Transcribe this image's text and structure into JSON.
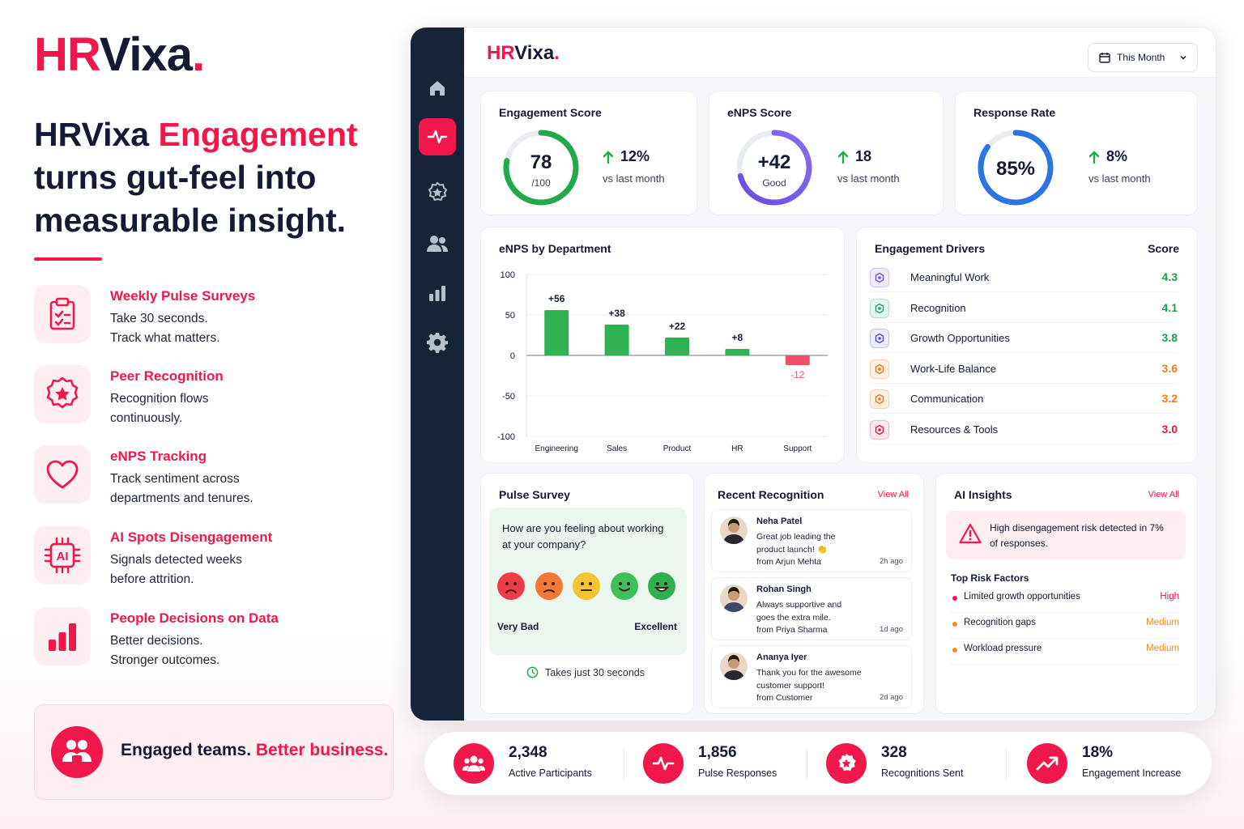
{
  "brand": {
    "part1": "HR",
    "part2": "Vixa",
    "dot": "."
  },
  "hero": {
    "title_part1": "HRVixa ",
    "title_highlight": "Engagement",
    "title_part2": "turns gut-feel into measurable insight."
  },
  "features": [
    {
      "title": "Weekly Pulse Surveys",
      "desc": "Take 30 seconds. Track what matters.",
      "icon": "clipboard-check-icon"
    },
    {
      "title": "Peer Recognition",
      "desc": "Recognition flows continuously.",
      "icon": "star-badge-icon"
    },
    {
      "title": "eNPS Tracking",
      "desc": "Track sentiment across departments and tenures.",
      "icon": "heart-icon"
    },
    {
      "title": "AI Spots Disengagement",
      "desc": "Signals detected weeks before attrition.",
      "icon": "ai-chip-icon"
    },
    {
      "title": "People Decisions on Data",
      "desc": "Better decisions. Stronger outcomes.",
      "icon": "bar-chart-icon"
    }
  ],
  "promo": {
    "text_part1": "Engaged teams. ",
    "text_highlight": "Better business."
  },
  "dashboard": {
    "period": "This Month",
    "kpis": {
      "engagement": {
        "title": "Engagement Score",
        "value": "78",
        "sub": "/100",
        "delta": "12%",
        "note": "vs last month",
        "progress": 0.78
      },
      "enps": {
        "title": "eNPS Score",
        "value": "+42",
        "sub": "Good",
        "delta": "18",
        "note": "vs last month",
        "progress": 0.71
      },
      "response": {
        "title": "Response Rate",
        "value": "85%",
        "delta": "8%",
        "note": "vs last month",
        "progress": 0.85
      }
    },
    "enps_dept_title": "eNPS by Department",
    "drivers": {
      "title": "Engagement Drivers",
      "score_header": "Score",
      "items": [
        {
          "label": "Meaningful Work",
          "score": "4.3",
          "color": "#1e9e45",
          "icon": "target-icon",
          "tint": "#efeafc",
          "stroke": "#6b4fd8"
        },
        {
          "label": "Recognition",
          "score": "4.1",
          "color": "#1e9e45",
          "icon": "award-icon",
          "tint": "#e3f6f1",
          "stroke": "#1f9c7a"
        },
        {
          "label": "Growth Opportunities",
          "score": "3.8",
          "color": "#1e9e45",
          "icon": "trend-icon",
          "tint": "#ecebfa",
          "stroke": "#4a4fc4"
        },
        {
          "label": "Work-Life Balance",
          "score": "3.6",
          "color": "#f07a1e",
          "icon": "balance-icon",
          "tint": "#fdf0e3",
          "stroke": "#e8741a"
        },
        {
          "label": "Communication",
          "score": "3.2",
          "color": "#f07a1e",
          "icon": "chat-icon",
          "tint": "#fdf0e3",
          "stroke": "#e8741a"
        },
        {
          "label": "Resources & Tools",
          "score": "3.0",
          "color": "#e8173f",
          "icon": "tools-icon",
          "tint": "#fde8ec",
          "stroke": "#e8173f"
        }
      ]
    },
    "pulse": {
      "title": "Pulse Survey",
      "question": "How are you feeling about working at your company?",
      "low_label": "Very Bad",
      "high_label": "Excellent",
      "footer": "Takes just 30 seconds",
      "faces": [
        {
          "name": "very-bad-face-icon",
          "color": "#ee3b48"
        },
        {
          "name": "bad-face-icon",
          "color": "#f07a35"
        },
        {
          "name": "neutral-face-icon",
          "color": "#f4c432"
        },
        {
          "name": "good-face-icon",
          "color": "#3fbf5a"
        },
        {
          "name": "excellent-face-icon",
          "color": "#2fb04c"
        }
      ]
    },
    "recognition": {
      "title": "Recent Recognition",
      "view_all": "View All",
      "items": [
        {
          "name": "Neha Patel",
          "message": "Great job leading the product launch! 👏",
          "from": "from Arjun Mehta",
          "time": "2h ago"
        },
        {
          "name": "Rohan Singh",
          "message": "Always supportive and goes the extra mile.",
          "from": "from Priya Sharma",
          "time": "1d ago"
        },
        {
          "name": "Ananya Iyer",
          "message": "Thank you for the awesome customer support!",
          "from": "from Customer",
          "time": "2d ago"
        }
      ]
    },
    "ai": {
      "title": "AI Insights",
      "view_all": "View All",
      "alert": "High disengagement risk detected in 7% of responses.",
      "risk_header": "Top Risk Factors",
      "risks": [
        {
          "label": "Limited growth opportunities",
          "level": "High",
          "color": "#f0174b"
        },
        {
          "label": "Recognition gaps",
          "level": "Medium",
          "color": "#f08a24"
        },
        {
          "label": "Workload pressure",
          "level": "Medium",
          "color": "#f08a24"
        }
      ]
    }
  },
  "stats": [
    {
      "value": "2,348",
      "label": "Active Participants",
      "icon": "users-icon"
    },
    {
      "value": "1,856",
      "label": "Pulse Responses",
      "icon": "pulse-icon"
    },
    {
      "value": "328",
      "label": "Recognitions Sent",
      "icon": "badge-icon"
    },
    {
      "value": "18%",
      "label": "Engagement Increase",
      "icon": "trending-up-icon"
    }
  ],
  "chart_data": {
    "type": "bar",
    "title": "eNPS by Department",
    "categories": [
      "Engineering",
      "Sales",
      "Product",
      "HR",
      "Support"
    ],
    "values": [
      56,
      38,
      22,
      8,
      -12
    ],
    "data_labels": [
      "+56",
      "+38",
      "+22",
      "+8",
      "-12"
    ],
    "yticks": [
      "100",
      "50",
      "0",
      "-50",
      "-100"
    ],
    "ylim": [
      -100,
      100
    ],
    "grid": true,
    "positive_color": "#2fb24f",
    "negative_color": "#f0506a"
  }
}
